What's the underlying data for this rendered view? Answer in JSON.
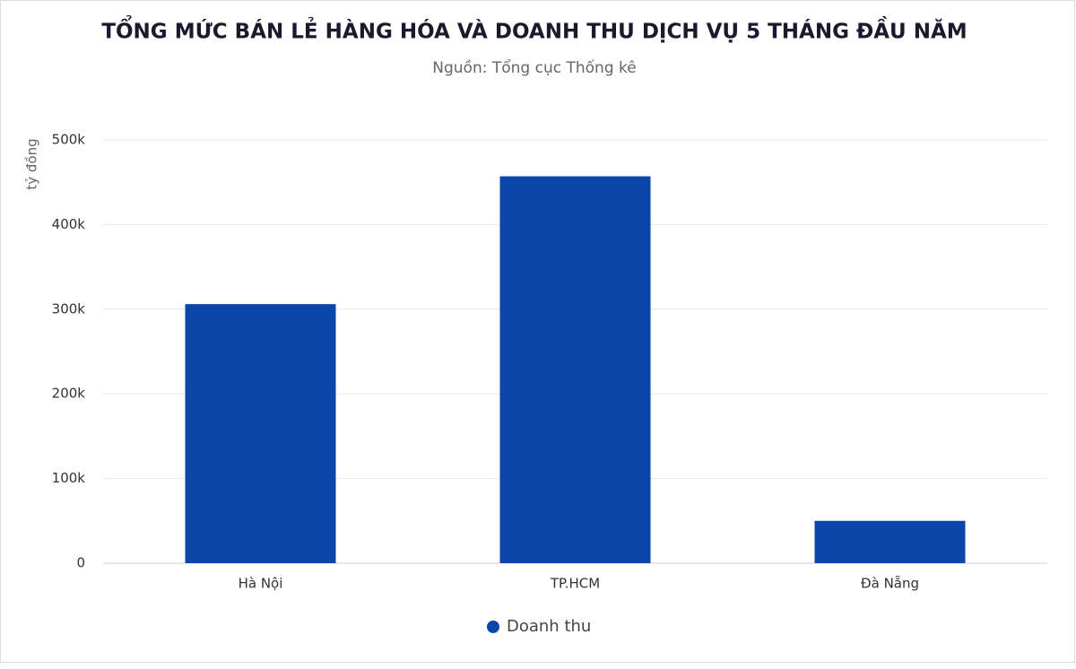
{
  "chart_data": {
    "type": "bar",
    "title": "TỔNG MỨC BÁN LẺ HÀNG HÓA VÀ DOANH THU DỊCH VỤ 5 THÁNG ĐẦU NĂM",
    "subtitle": "Nguồn: Tổng cục Thống kê",
    "y_label": "tỷ đồng",
    "categories": [
      "Hà Nội",
      "TP.HCM",
      "Đà Nẵng"
    ],
    "series": [
      {
        "name": "Doanh thu",
        "color": "#0a47a9",
        "values": [
          306000,
          457000,
          50000
        ]
      }
    ],
    "ylim": [
      0,
      500000
    ],
    "yticks": [
      0,
      {
        "value": 100000,
        "label": "100k"
      },
      {
        "value": 200000,
        "label": "200k"
      },
      {
        "value": 300000,
        "label": "300k"
      },
      {
        "value": 400000,
        "label": "400k"
      },
      {
        "value": 500000,
        "label": "500k"
      }
    ],
    "grid": true
  }
}
